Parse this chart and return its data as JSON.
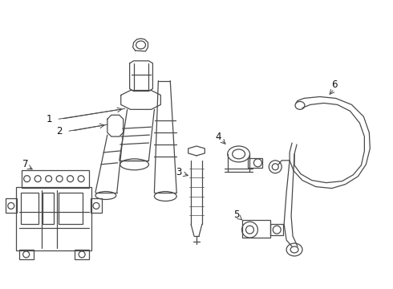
{
  "background_color": "#ffffff",
  "line_color": "#4a4a4a",
  "label_color": "#111111",
  "label_fontsize": 8.5,
  "figsize": [
    4.9,
    3.6
  ],
  "dpi": 100,
  "xlim": [
    0,
    490
  ],
  "ylim": [
    0,
    360
  ]
}
